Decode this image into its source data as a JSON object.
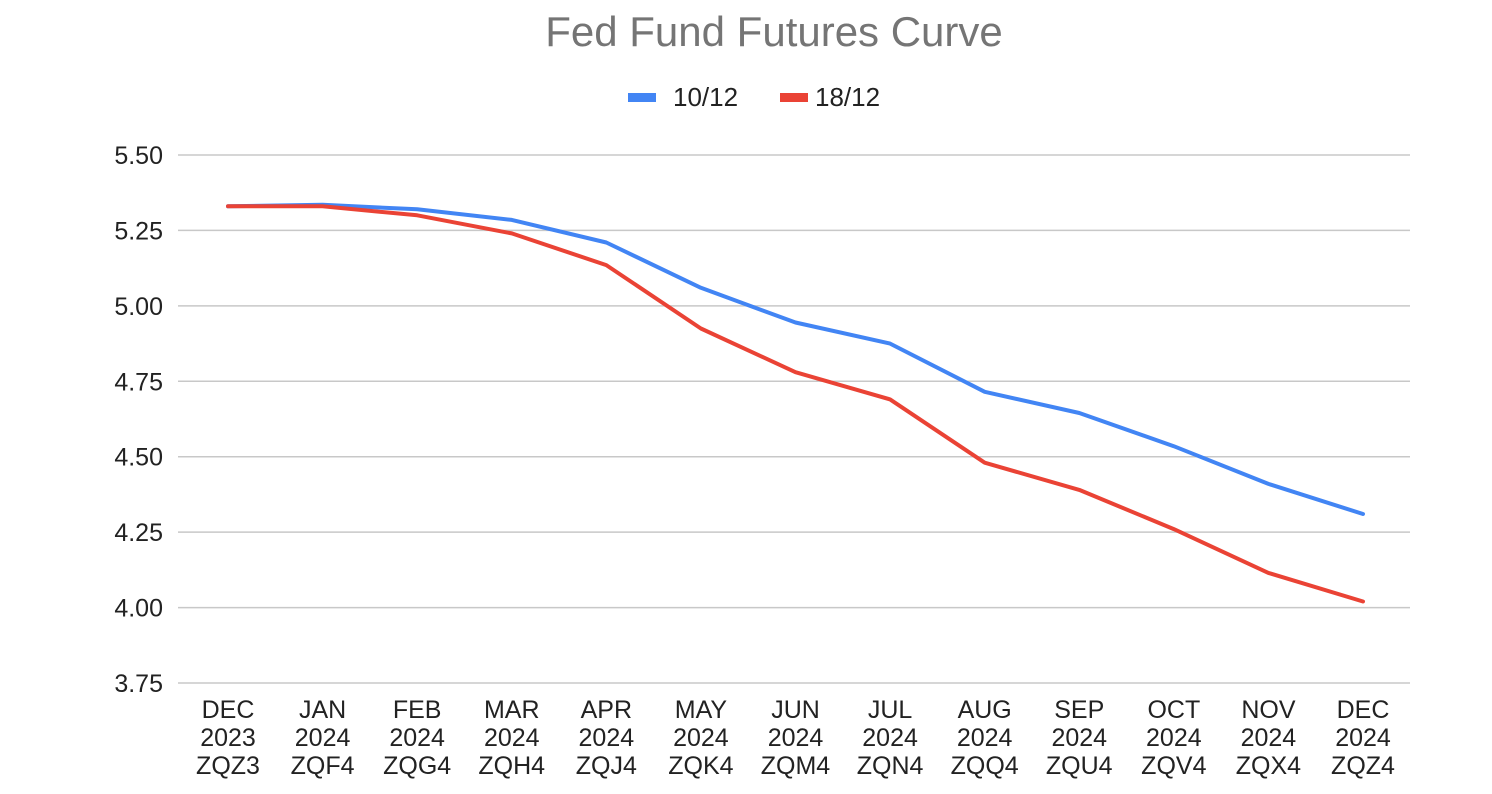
{
  "chart_data": {
    "type": "line",
    "title": "Fed Fund Futures Curve",
    "xlabel": "",
    "ylabel": "",
    "categories": [
      [
        "DEC",
        "2023",
        "ZQZ3"
      ],
      [
        "JAN",
        "2024",
        "ZQF4"
      ],
      [
        "FEB",
        "2024",
        "ZQG4"
      ],
      [
        "MAR",
        "2024",
        "ZQH4"
      ],
      [
        "APR",
        "2024",
        "ZQJ4"
      ],
      [
        "MAY",
        "2024",
        "ZQK4"
      ],
      [
        "JUN",
        "2024",
        "ZQM4"
      ],
      [
        "JUL",
        "2024",
        "ZQN4"
      ],
      [
        "AUG",
        "2024",
        "ZQQ4"
      ],
      [
        "SEP",
        "2024",
        "ZQU4"
      ],
      [
        "OCT",
        "2024",
        "ZQV4"
      ],
      [
        "NOV",
        "2024",
        "ZQX4"
      ],
      [
        "DEC",
        "2024",
        "ZQZ4"
      ]
    ],
    "ylim": [
      3.75,
      5.5
    ],
    "yticks": [
      "5.50",
      "5.25",
      "5.00",
      "4.75",
      "4.50",
      "4.25",
      "4.00",
      "3.75"
    ],
    "grid": true,
    "legend_position": "top-center",
    "series": [
      {
        "name": "10/12",
        "color": "#4285f4",
        "values": [
          5.33,
          5.335,
          5.32,
          5.285,
          5.21,
          5.06,
          4.945,
          4.875,
          4.715,
          4.645,
          4.535,
          4.41,
          4.31
        ]
      },
      {
        "name": "18/12",
        "color": "#ea4335",
        "values": [
          5.33,
          5.33,
          5.3,
          5.24,
          5.135,
          4.925,
          4.78,
          4.69,
          4.48,
          4.39,
          4.26,
          4.115,
          4.02
        ]
      }
    ]
  }
}
